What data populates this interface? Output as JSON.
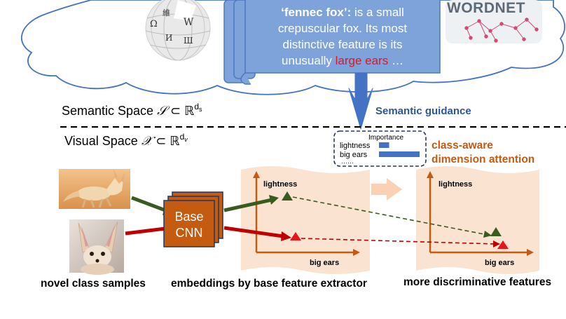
{
  "definition": {
    "term": "‘fennec fox’:",
    "line1_rest": " is a small",
    "line2": "crepuscular fox. Its most",
    "line3": "distinctive feature is its",
    "line4_pre": "unusually ",
    "line4_highlight": "large ears",
    "line4_post": " …"
  },
  "wordnet_label": "WORDNET",
  "wikipedia_glyphs": [
    "Ω",
    "W",
    "И",
    "Ш",
    "維"
  ],
  "semantic_space": {
    "label": "Semantic Space ",
    "symbol": "𝒮",
    "subset": " ⊂ ℝ",
    "sup_base": "d",
    "sup_sub": "s"
  },
  "visual_space": {
    "label": "Visual Space ",
    "symbol": "𝒳",
    "subset": " ⊂ ℝ",
    "sup_base": "d",
    "sup_sub": "v"
  },
  "semantic_guidance": "Semantic guidance",
  "importance": {
    "title": "Importance",
    "rows": [
      {
        "label": "lightness",
        "value": 0.25
      },
      {
        "label": "big ears",
        "value": 1.0
      }
    ],
    "more": "……"
  },
  "attention_label_1": "class-aware",
  "attention_label_2": "dimension attention",
  "cnn": {
    "line1": "Base",
    "line2": "CNN"
  },
  "plots": {
    "y_label": "lightness",
    "x_label": "big ears"
  },
  "captions": {
    "samples": "novel class samples",
    "embeddings": "embeddings by base feature extractor",
    "discriminative": "more discriminative features"
  },
  "colors": {
    "scroll": "#7ea3db",
    "scroll_border": "#4f78c0",
    "guidance_arrow": "#4472c4",
    "guidance_text": "#2e5597",
    "accent_red": "#e2161b",
    "green": "#3a5b1e",
    "red_arrow": "#c00000",
    "orange": "#c55a11",
    "cnn_fill": "#c55a11",
    "panel": "#fbe3d2",
    "bar": "#4472c4"
  }
}
